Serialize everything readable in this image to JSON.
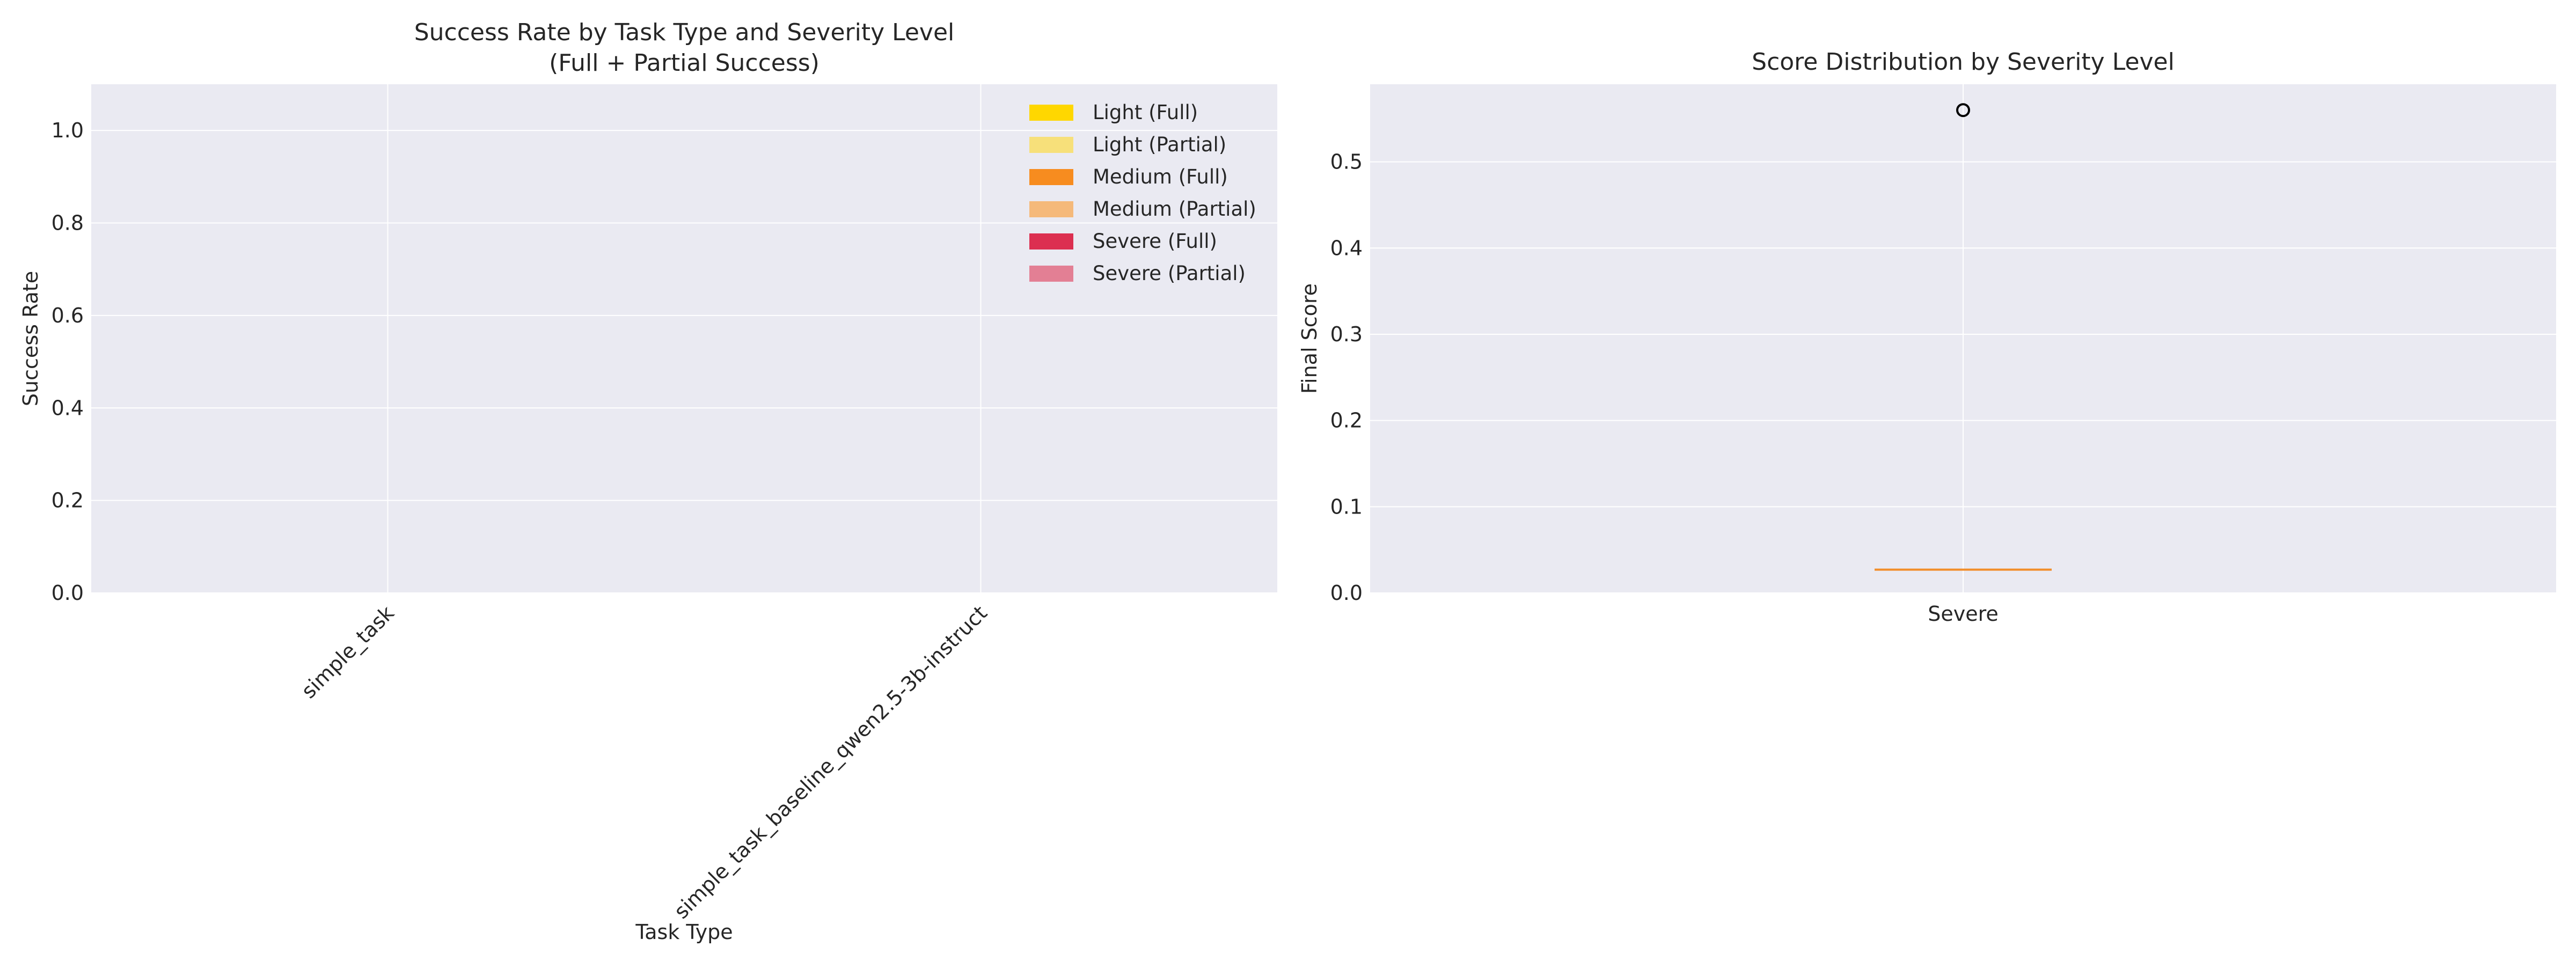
{
  "chart_data": [
    {
      "type": "bar",
      "title": "Success Rate by Task Type and Severity Level",
      "subtitle": "(Full + Partial Success)",
      "xlabel": "Task Type",
      "ylabel": "Success Rate",
      "categories": [
        "simple_task",
        "simple_task_baseline_qwen2.5-3b-instruct"
      ],
      "ylim": [
        0,
        1.1
      ],
      "yticks": [
        "0.0",
        "0.2",
        "0.4",
        "0.6",
        "0.8",
        "1.0"
      ],
      "grid": true,
      "legend_position": "upper-right",
      "series": [
        {
          "name": "Light (Full)",
          "color": "#ffd700",
          "values": [
            0,
            0
          ]
        },
        {
          "name": "Light (Partial)",
          "color": "#f7e07a",
          "values": [
            0,
            0
          ]
        },
        {
          "name": "Medium (Full)",
          "color": "#f78c1f",
          "values": [
            0,
            0
          ]
        },
        {
          "name": "Medium (Partial)",
          "color": "#f5b97a",
          "values": [
            0,
            0
          ]
        },
        {
          "name": "Severe (Full)",
          "color": "#dc2f50",
          "values": [
            0,
            0
          ]
        },
        {
          "name": "Severe (Partial)",
          "color": "#e37f94",
          "values": [
            0,
            0
          ]
        }
      ]
    },
    {
      "type": "box",
      "title": "Score Distribution by Severity Level",
      "xlabel": "",
      "ylabel": "Final Score",
      "categories": [
        "Severe"
      ],
      "ylim": [
        0,
        0.59
      ],
      "yticks": [
        "0.0",
        "0.1",
        "0.2",
        "0.3",
        "0.4",
        "0.5"
      ],
      "grid": true,
      "median_color": "#f28e2b",
      "boxes": [
        {
          "name": "Severe",
          "median": 0.027,
          "q1": 0.027,
          "q3": 0.027,
          "whisker_low": 0.027,
          "whisker_high": 0.027,
          "outliers": [
            0.56
          ]
        }
      ]
    }
  ]
}
